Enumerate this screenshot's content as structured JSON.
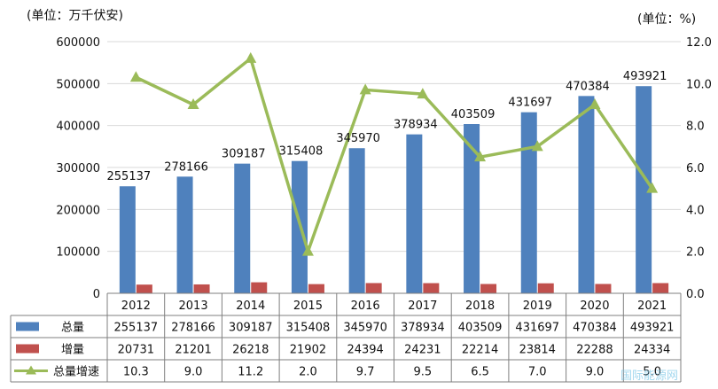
{
  "chart_data": {
    "type": "bar",
    "units_left": "(单位：万千伏安)",
    "units_right": "(单位：%)",
    "categories": [
      "2012",
      "2013",
      "2014",
      "2015",
      "2016",
      "2017",
      "2018",
      "2019",
      "2020",
      "2021"
    ],
    "series": [
      {
        "name": "总量",
        "kind": "bar",
        "axis": "left",
        "color": "#4f81bd",
        "values": [
          255137,
          278166,
          309187,
          315408,
          345970,
          378934,
          403509,
          431697,
          470384,
          493921
        ]
      },
      {
        "name": "增量",
        "kind": "bar",
        "axis": "left",
        "color": "#c0504d",
        "values": [
          20731,
          21201,
          26218,
          21902,
          24394,
          24231,
          22214,
          23814,
          22288,
          24334
        ]
      },
      {
        "name": "总量增速",
        "kind": "line",
        "axis": "right",
        "color": "#9bbb59",
        "values": [
          10.3,
          9.0,
          11.2,
          2.0,
          9.7,
          9.5,
          6.5,
          7.0,
          9.0,
          5.0
        ]
      }
    ],
    "ylim_left": [
      0,
      600000
    ],
    "yticks_left": [
      "0",
      "100000",
      "200000",
      "300000",
      "400000",
      "500000",
      "600000"
    ],
    "ylim_right": [
      0,
      12
    ],
    "yticks_right": [
      "0.0",
      "2.0",
      "4.0",
      "6.0",
      "8.0",
      "10.0",
      "12.0"
    ],
    "grid": true,
    "legend": "data-table-below"
  },
  "watermark": "国际能源网"
}
